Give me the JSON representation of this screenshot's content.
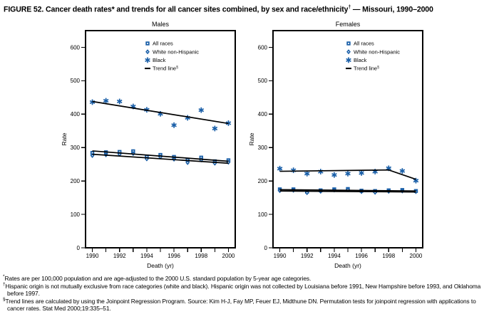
{
  "title": {
    "part1": "FIGURE 52. Cancer death rates* and trends for all cancer sites combined, by sex and race/ethnicity",
    "sup": "†",
    "part2": " — Missouri, 1990–2000"
  },
  "colors": {
    "series_blue": "#1a5fa8",
    "trend_line": "#000000",
    "frame": "#000000",
    "background": "#ffffff"
  },
  "legend": {
    "items": [
      {
        "label": "All races",
        "sup": "",
        "marker": "square"
      },
      {
        "label": "White non-Hispanic",
        "sup": "",
        "marker": "diamond"
      },
      {
        "label": "Black",
        "sup": "",
        "marker": "star"
      },
      {
        "label": "Trend line",
        "sup": "§",
        "marker": "dash"
      }
    ]
  },
  "axes": {
    "ylabel": "Rate",
    "xlabel": "Death (yr)",
    "yticks": [
      0,
      100,
      200,
      300,
      400,
      500,
      600
    ],
    "ylim": [
      0,
      650
    ],
    "years": [
      1990,
      1991,
      1992,
      1993,
      1994,
      1995,
      1996,
      1997,
      1998,
      1999,
      2000
    ],
    "xtick_labels": [
      1990,
      1992,
      1994,
      1996,
      1998,
      2000
    ],
    "grid": false,
    "legend_position": "top-inside"
  },
  "chart_data": [
    {
      "type": "scatter",
      "title": "Males",
      "x": [
        1990,
        1991,
        1992,
        1993,
        1994,
        1995,
        1996,
        1997,
        1998,
        1999,
        2000
      ],
      "series": [
        {
          "name": "All races",
          "marker": "square",
          "values": [
            284,
            286,
            287,
            289,
            273,
            278,
            272,
            263,
            270,
            259,
            262
          ]
        },
        {
          "name": "White non-Hispanic",
          "marker": "diamond",
          "values": [
            276,
            278,
            280,
            282,
            266,
            272,
            265,
            255,
            263,
            253,
            256
          ]
        },
        {
          "name": "Black",
          "marker": "star",
          "values": [
            436,
            440,
            438,
            423,
            413,
            401,
            367,
            389,
            412,
            357,
            373
          ]
        }
      ],
      "trend_lines": [
        {
          "series": "All races",
          "points": [
            [
              1990,
              290
            ],
            [
              2000,
              259
            ]
          ]
        },
        {
          "series": "White non-Hispanic",
          "points": [
            [
              1990,
              280
            ],
            [
              2000,
              253
            ]
          ]
        },
        {
          "series": "Black",
          "points": [
            [
              1990,
              438
            ],
            [
              2000,
              372
            ]
          ]
        }
      ]
    },
    {
      "type": "scatter",
      "title": "Females",
      "x": [
        1990,
        1991,
        1992,
        1993,
        1994,
        1995,
        1996,
        1997,
        1998,
        1999,
        2000
      ],
      "series": [
        {
          "name": "All races",
          "marker": "square",
          "values": [
            175,
            175,
            168,
            172,
            175,
            176,
            171,
            170,
            172,
            173,
            170
          ]
        },
        {
          "name": "White non-Hispanic",
          "marker": "diamond",
          "values": [
            171,
            172,
            165,
            169,
            173,
            174,
            168,
            166,
            169,
            170,
            168
          ]
        },
        {
          "name": "Black",
          "marker": "star",
          "values": [
            237,
            232,
            222,
            228,
            218,
            222,
            224,
            228,
            238,
            230,
            201
          ]
        }
      ],
      "trend_lines": [
        {
          "series": "All races",
          "points": [
            [
              1990,
              174
            ],
            [
              2000,
              170
            ]
          ]
        },
        {
          "series": "White non-Hispanic",
          "points": [
            [
              1990,
              170
            ],
            [
              2000,
              167
            ]
          ]
        },
        {
          "series": "Black",
          "points": [
            [
              1990,
              229
            ],
            [
              1998,
              233
            ],
            [
              2000,
              205
            ]
          ]
        }
      ]
    }
  ],
  "footnotes": [
    {
      "sup": "*",
      "text": "Rates are per 100,000 population and are age-adjusted to the 2000 U.S. standard population by 5-year age categories."
    },
    {
      "sup": "†",
      "text": "Hispanic origin is not mutually exclusive from race categories (white and black). Hispanic origin was not collected by Louisiana before 1991, New Hampshire before 1993, and Oklahoma before 1997."
    },
    {
      "sup": "§",
      "text": "Trend lines are calculated by using the Joinpoint Regression Program. Source: Kim H-J, Fay MP, Feuer EJ, Midthune DN. Permutation tests for joinpoint regression with applications to cancer rates. Stat Med 2000;19:335–51."
    }
  ]
}
